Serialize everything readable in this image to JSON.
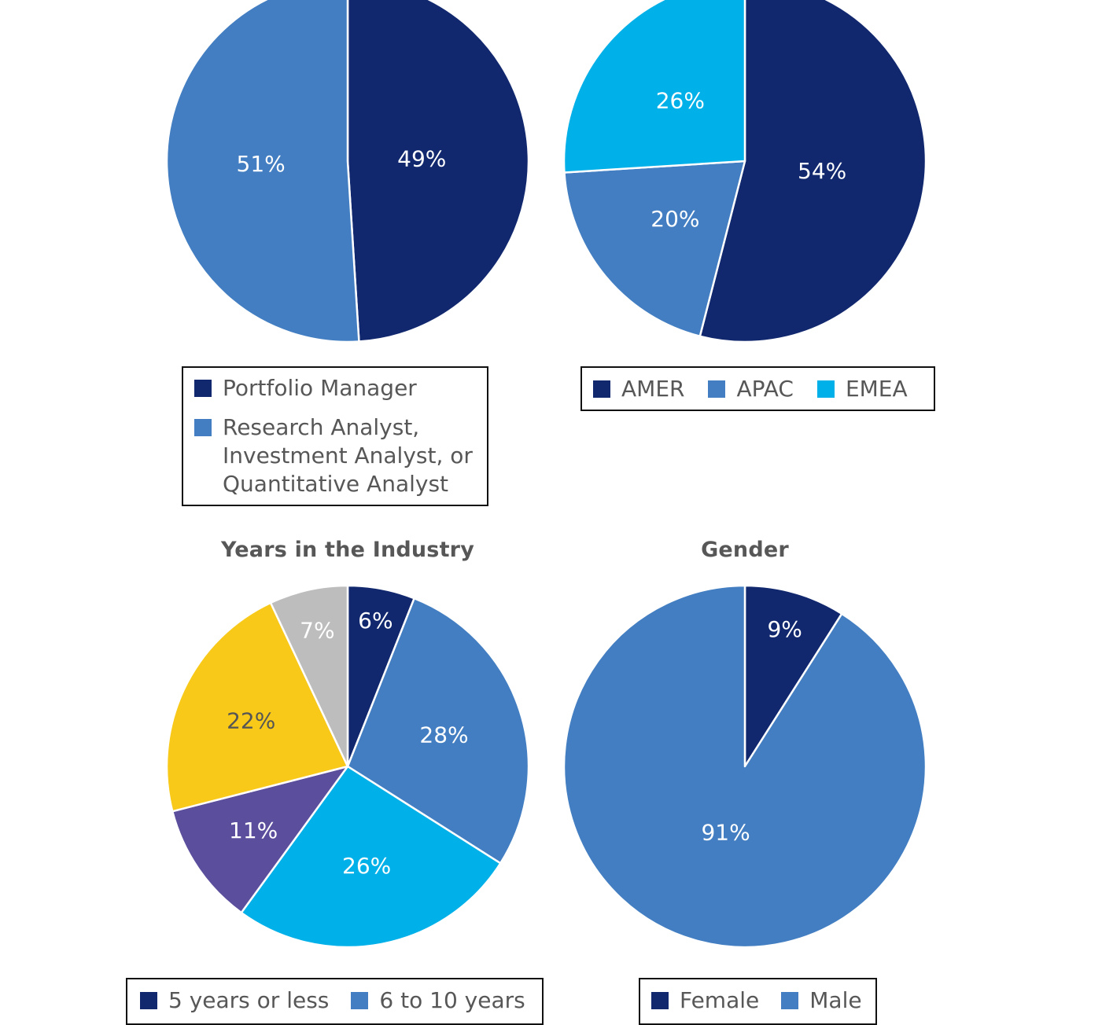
{
  "colors": {
    "navy": "#11286e",
    "steel_blue": "#427ec1",
    "cyan": "#00b0e8",
    "purple": "#5a4e9d",
    "yellow": "#f8c918",
    "gray": "#bdbdbd",
    "slice_border": "#ffffff",
    "label_light": "#ffffff",
    "label_dark": "#555555"
  },
  "chart_data": [
    {
      "type": "pie",
      "title": "",
      "series": [
        {
          "name": "Portfolio Manager",
          "value": 49,
          "label": "49%",
          "color": "#11286e",
          "label_color": "#ffffff"
        },
        {
          "name": "Research Analyst,\nInvestment Analyst, or\nQuantitative Analyst",
          "value": 51,
          "label": "51%",
          "color": "#427ec1",
          "label_color": "#ffffff"
        }
      ],
      "legend_placement": "bottom"
    },
    {
      "type": "pie",
      "title": "",
      "series": [
        {
          "name": "AMER",
          "value": 54,
          "label": "54%",
          "color": "#11286e",
          "label_color": "#ffffff"
        },
        {
          "name": "APAC",
          "value": 20,
          "label": "20%",
          "color": "#427ec1",
          "label_color": "#ffffff"
        },
        {
          "name": "EMEA",
          "value": 26,
          "label": "26%",
          "color": "#00b0e8",
          "label_color": "#ffffff"
        }
      ],
      "legend_placement": "bottom"
    },
    {
      "type": "pie",
      "title": "Years in the Industry",
      "series": [
        {
          "name": "5 years or less",
          "value": 6,
          "label": "6%",
          "color": "#11286e",
          "label_color": "#ffffff"
        },
        {
          "name": "6 to 10 years",
          "value": 28,
          "label": "28%",
          "color": "#427ec1",
          "label_color": "#ffffff"
        },
        {
          "name": "",
          "value": 26,
          "label": "26%",
          "color": "#00b0e8",
          "label_color": "#ffffff"
        },
        {
          "name": "",
          "value": 11,
          "label": "11%",
          "color": "#5a4e9d",
          "label_color": "#ffffff"
        },
        {
          "name": "",
          "value": 22,
          "label": "22%",
          "color": "#f8c918",
          "label_color": "#555555"
        },
        {
          "name": "",
          "value": 7,
          "label": "7%",
          "color": "#bdbdbd",
          "label_color": "#ffffff"
        }
      ],
      "legend_placement": "bottom"
    },
    {
      "type": "pie",
      "title": "Gender",
      "series": [
        {
          "name": "Female",
          "value": 9,
          "label": "9%",
          "color": "#11286e",
          "label_color": "#ffffff"
        },
        {
          "name": "Male",
          "value": 91,
          "label": "91%",
          "color": "#427ec1",
          "label_color": "#ffffff"
        }
      ],
      "legend_placement": "bottom"
    }
  ]
}
